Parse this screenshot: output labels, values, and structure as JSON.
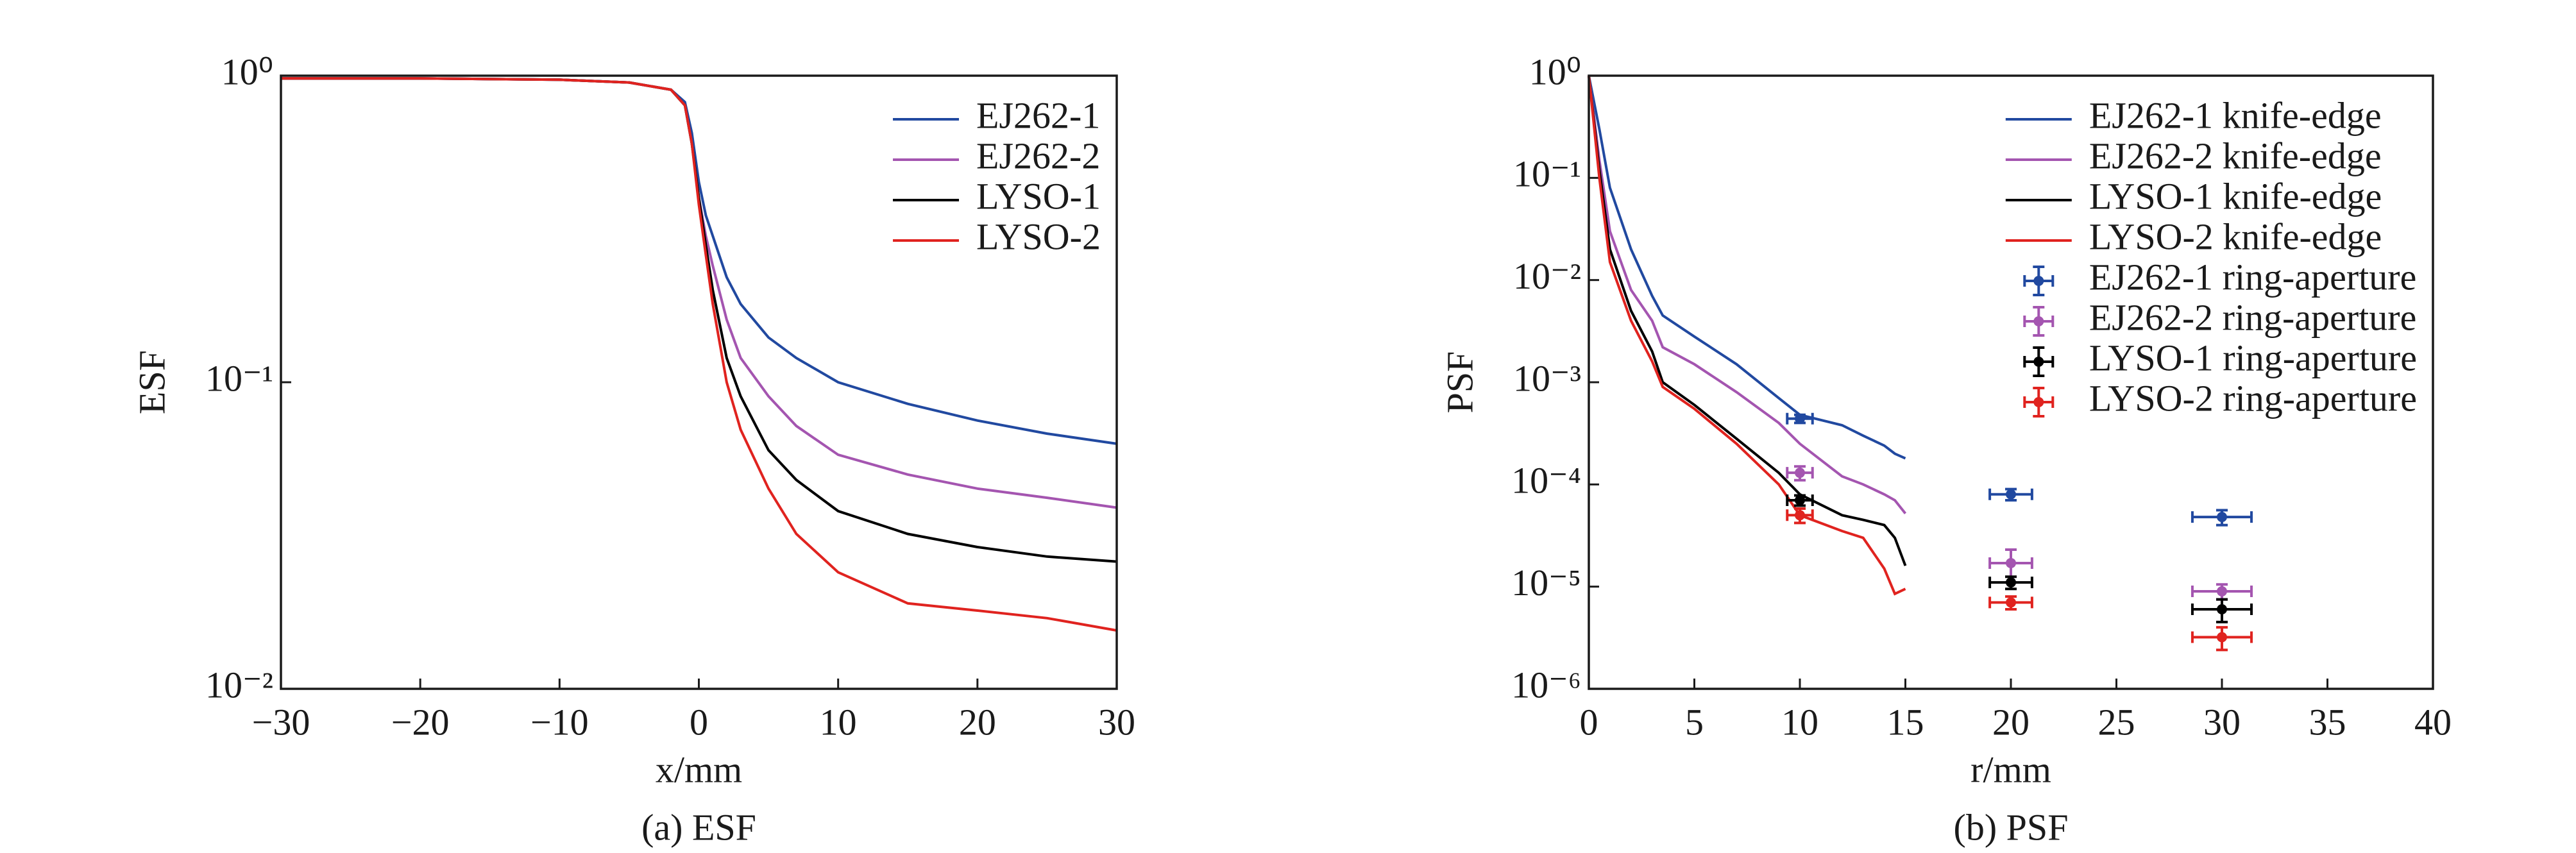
{
  "chart_data": [
    {
      "type": "line",
      "y_label": "ESF",
      "x_label": "x/mm",
      "caption": "(a) ESF",
      "yscale": "log",
      "legend": "upper right",
      "xlim": [
        -30,
        30
      ],
      "xticks": [
        {
          "value": -30,
          "label": "−30"
        },
        {
          "value": -20,
          "label": "−20"
        },
        {
          "value": -10,
          "label": "−10"
        },
        0,
        10,
        20,
        30
      ],
      "ylim": [
        0.01,
        1
      ],
      "yticks": [
        {
          "value": 0.01,
          "label": "10⁻²"
        },
        {
          "value": 0.1,
          "label": "10⁻¹"
        },
        {
          "value": 1,
          "label": "10⁰"
        }
      ],
      "x": [
        -30,
        -20,
        -10,
        -5,
        -2,
        -1,
        -0.5,
        0,
        0.5,
        1,
        2,
        3,
        5,
        7,
        10,
        15,
        20,
        25,
        30
      ],
      "series": [
        {
          "name": "EJ262-1",
          "color": "#2149a0",
          "values": [
            0.98,
            0.98,
            0.97,
            0.95,
            0.9,
            0.82,
            0.65,
            0.45,
            0.35,
            0.3,
            0.22,
            0.18,
            0.14,
            0.12,
            0.1,
            0.085,
            0.075,
            0.068,
            0.063
          ]
        },
        {
          "name": "EJ262-2",
          "color": "#a455b0",
          "values": [
            0.98,
            0.98,
            0.97,
            0.95,
            0.9,
            0.8,
            0.6,
            0.4,
            0.3,
            0.24,
            0.16,
            0.12,
            0.09,
            0.072,
            0.058,
            0.05,
            0.045,
            0.042,
            0.039
          ]
        },
        {
          "name": "LYSO-1",
          "color": "#000000",
          "values": [
            0.98,
            0.98,
            0.97,
            0.95,
            0.9,
            0.8,
            0.6,
            0.4,
            0.28,
            0.2,
            0.12,
            0.09,
            0.06,
            0.048,
            0.038,
            0.032,
            0.029,
            0.027,
            0.026
          ]
        },
        {
          "name": "LYSO-2",
          "color": "#e0231f",
          "values": [
            0.98,
            0.98,
            0.97,
            0.95,
            0.9,
            0.8,
            0.6,
            0.38,
            0.26,
            0.18,
            0.1,
            0.07,
            0.045,
            0.032,
            0.024,
            0.019,
            0.018,
            0.017,
            0.0155
          ]
        }
      ]
    },
    {
      "type": "line",
      "y_label": "PSF",
      "x_label": "r/mm",
      "caption": "(b) PSF",
      "yscale": "log",
      "legend": "upper right",
      "xlim": [
        0,
        40
      ],
      "xticks": [
        0,
        5,
        10,
        15,
        20,
        25,
        30,
        35,
        40
      ],
      "ylim": [
        1e-06,
        1
      ],
      "yticks": [
        {
          "value": 1e-06,
          "label": "10⁻⁶"
        },
        {
          "value": 1e-05,
          "label": "10⁻⁵"
        },
        {
          "value": 0.0001,
          "label": "10⁻⁴"
        },
        {
          "value": 0.001,
          "label": "10⁻³"
        },
        {
          "value": 0.01,
          "label": "10⁻²"
        },
        {
          "value": 0.1,
          "label": "10⁻¹"
        },
        {
          "value": 1,
          "label": "10⁰"
        }
      ],
      "x": [
        0,
        0.5,
        1,
        2,
        3,
        3.5,
        5,
        7,
        9,
        10,
        12,
        13,
        14,
        14.5,
        15
      ],
      "series": [
        {
          "name": "EJ262-1 knife-edge",
          "color": "#2149a0",
          "values": [
            1,
            0.3,
            0.08,
            0.02,
            0.007,
            0.0045,
            0.0028,
            0.0015,
            0.0007,
            0.00048,
            0.00038,
            0.0003,
            0.00024,
            0.0002,
            0.00018
          ]
        },
        {
          "name": "EJ262-2 knife-edge",
          "color": "#a455b0",
          "values": [
            1,
            0.15,
            0.03,
            0.008,
            0.004,
            0.0022,
            0.0015,
            0.0008,
            0.0004,
            0.00025,
            0.00012,
            0.0001,
            8e-05,
            7e-05,
            5.2e-05
          ]
        },
        {
          "name": "LYSO-1 knife-edge",
          "color": "#000000",
          "values": [
            1,
            0.12,
            0.02,
            0.005,
            0.002,
            0.001,
            0.0006,
            0.00028,
            0.00013,
            8e-05,
            5e-05,
            4.5e-05,
            4e-05,
            3e-05,
            1.6e-05
          ]
        },
        {
          "name": "LYSO-2 knife-edge",
          "color": "#e0231f",
          "values": [
            1,
            0.1,
            0.015,
            0.004,
            0.0016,
            0.0009,
            0.00055,
            0.00025,
            0.0001,
            5e-05,
            3.5e-05,
            3e-05,
            1.5e-05,
            8.5e-06,
            9.5e-06
          ]
        },
        {
          "name": "EJ262-1 ring-aperture",
          "type": "errorbar",
          "color": "#2149a0",
          "x": [
            10,
            20,
            30
          ],
          "xerr": [
            0.6,
            1,
            1.4
          ],
          "values": [
            0.00044,
            8e-05,
            4.8e-05
          ],
          "yerr": [
            4e-05,
            1e-05,
            8e-06
          ]
        },
        {
          "name": "EJ262-2 ring-aperture",
          "type": "errorbar",
          "color": "#a455b0",
          "x": [
            10,
            20,
            30
          ],
          "xerr": [
            0.6,
            1,
            1.4
          ],
          "values": [
            0.00013,
            1.7e-05,
            9e-06
          ],
          "yerr": [
            2e-05,
            6e-06,
            1.5e-06
          ]
        },
        {
          "name": "LYSO-1 ring-aperture",
          "type": "errorbar",
          "color": "#000000",
          "x": [
            10,
            20,
            30
          ],
          "xerr": [
            0.6,
            1,
            1.4
          ],
          "values": [
            7e-05,
            1.1e-05,
            6e-06
          ],
          "yerr": [
            8e-06,
            1.5e-06,
            1.5e-06
          ]
        },
        {
          "name": "LYSO-2 ring-aperture",
          "type": "errorbar",
          "color": "#e0231f",
          "x": [
            10,
            20,
            30
          ],
          "xerr": [
            0.6,
            1,
            1.4
          ],
          "values": [
            5e-05,
            7e-06,
            3.2e-06
          ],
          "yerr": [
            8e-06,
            1e-06,
            8e-07
          ]
        }
      ]
    }
  ]
}
